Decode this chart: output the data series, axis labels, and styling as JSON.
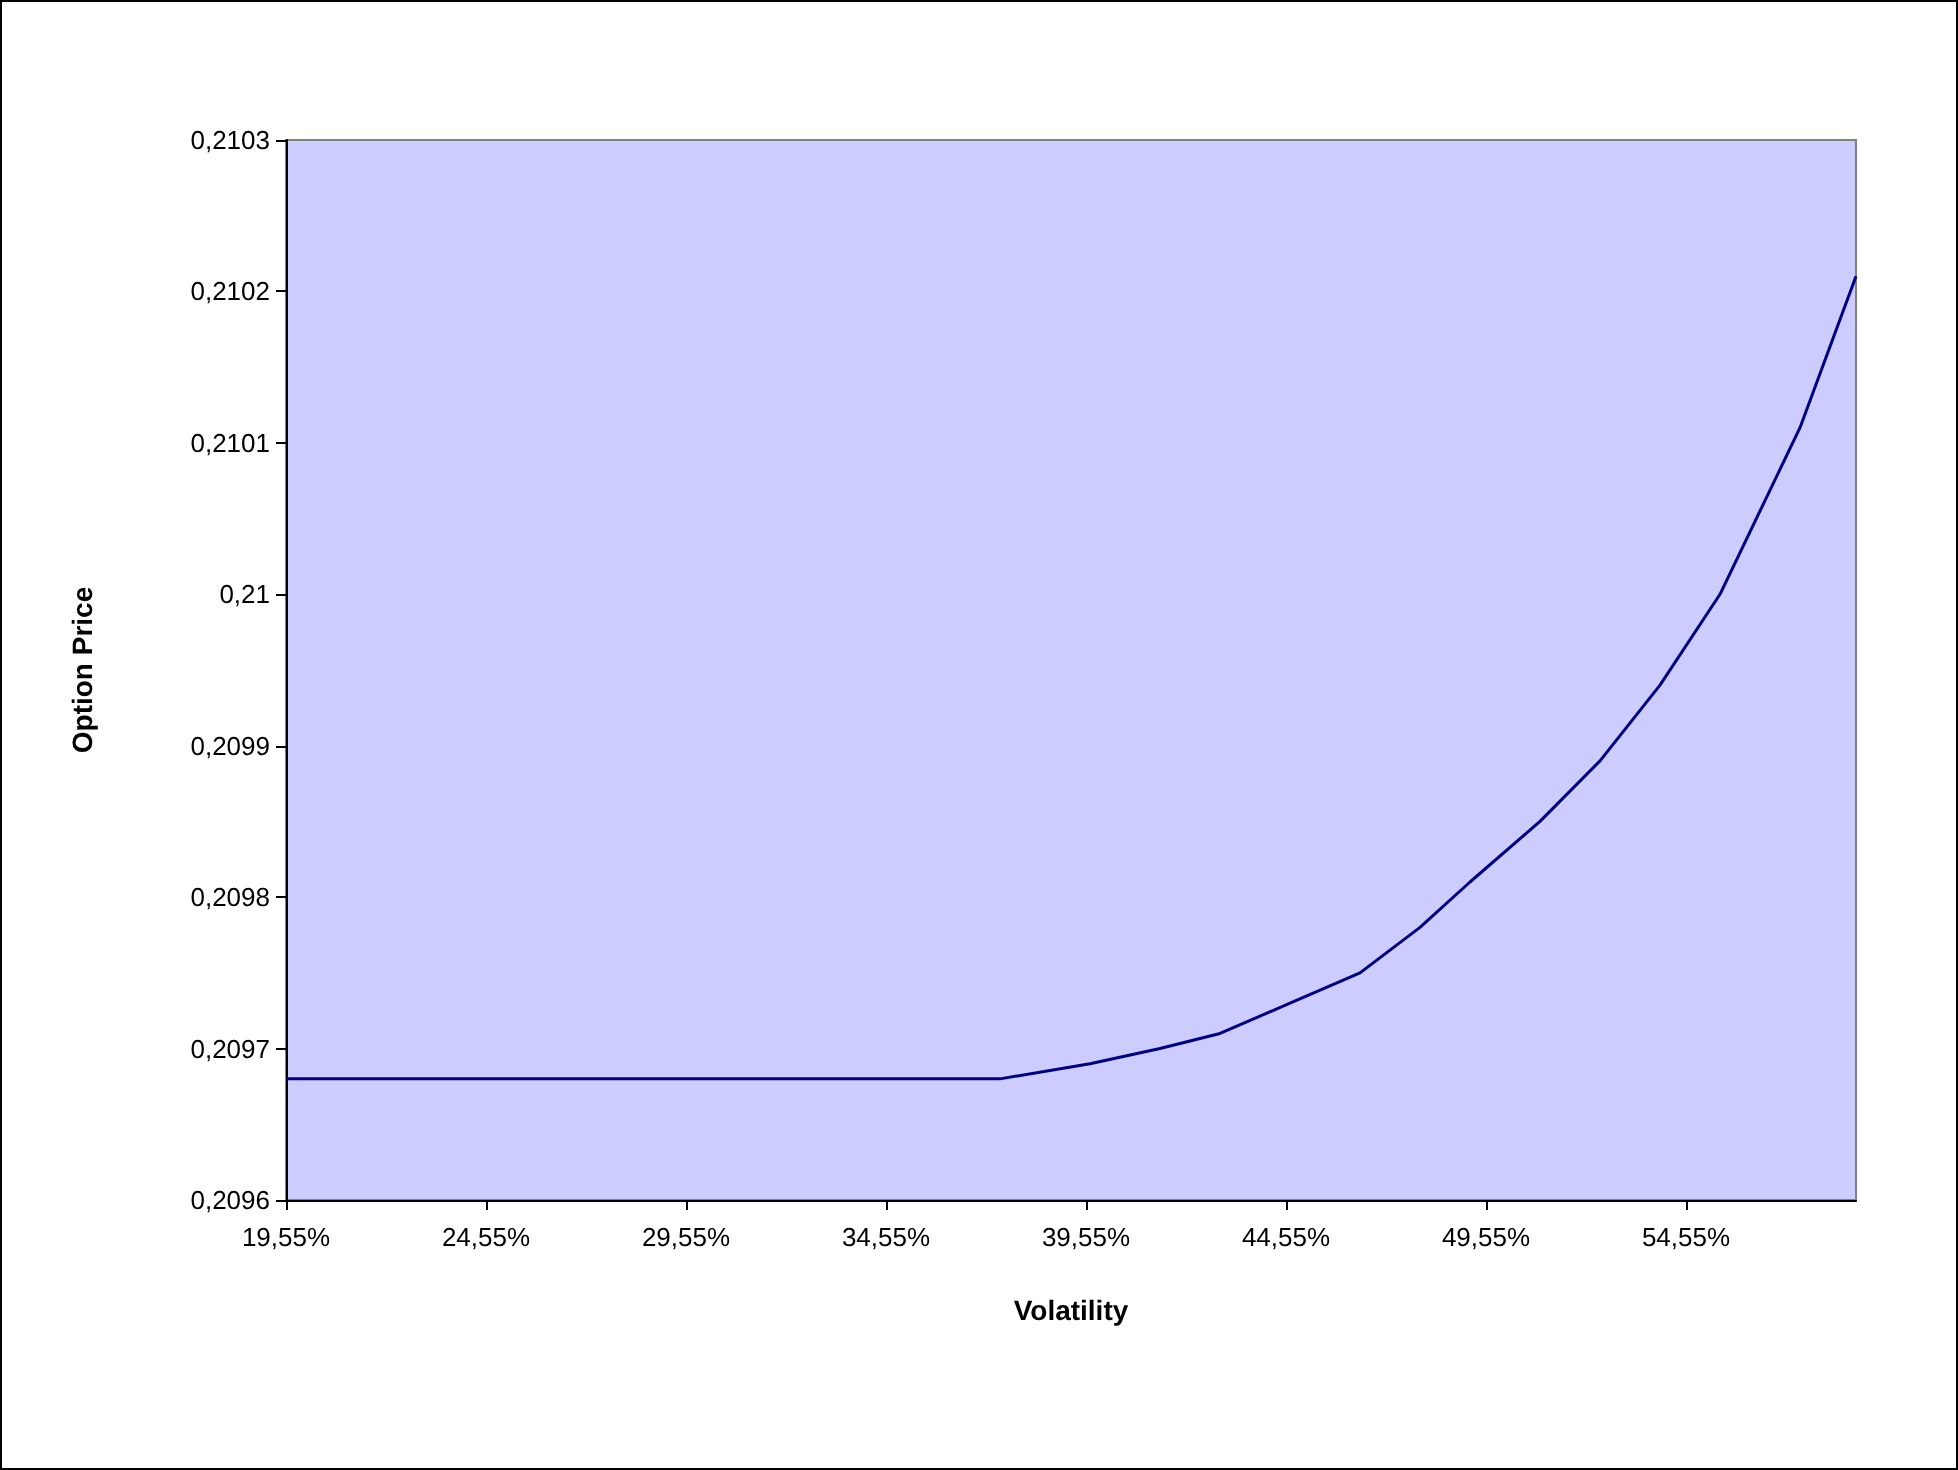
{
  "chart_data": {
    "type": "line",
    "xlabel": "Volatility",
    "ylabel": "Option Price",
    "x": [
      19.55,
      24.55,
      29.55,
      34.55,
      37.4,
      39.65,
      41.4,
      42.9,
      44.65,
      46.4,
      47.9,
      49.15,
      50.9,
      52.4,
      53.9,
      55.4,
      57.4,
      58.8
    ],
    "values": [
      0.20968,
      0.20968,
      0.20968,
      0.20968,
      0.20968,
      0.20969,
      0.2097,
      0.20971,
      0.20973,
      0.20975,
      0.20978,
      0.20981,
      0.20985,
      0.20989,
      0.20994,
      0.21,
      0.21011,
      0.21021
    ],
    "color": "#000080",
    "xlim": [
      19.55,
      58.8
    ],
    "ylim": [
      0.2096,
      0.2103
    ],
    "xticks": [
      {
        "value": 19.55,
        "label": "19,55%"
      },
      {
        "value": 24.55,
        "label": "24,55%"
      },
      {
        "value": 29.55,
        "label": "29,55%"
      },
      {
        "value": 34.55,
        "label": "34,55%"
      },
      {
        "value": 39.55,
        "label": "39,55%"
      },
      {
        "value": 44.55,
        "label": "44,55%"
      },
      {
        "value": 49.55,
        "label": "49,55%"
      },
      {
        "value": 54.55,
        "label": "54,55%"
      }
    ],
    "yticks": [
      {
        "value": 0.2096,
        "label": "0,2096"
      },
      {
        "value": 0.2097,
        "label": "0,2097"
      },
      {
        "value": 0.2098,
        "label": "0,2098"
      },
      {
        "value": 0.2099,
        "label": "0,2099"
      },
      {
        "value": 0.21,
        "label": "0,21"
      },
      {
        "value": 0.2101,
        "label": "0,2101"
      },
      {
        "value": 0.2102,
        "label": "0,2102"
      },
      {
        "value": 0.2103,
        "label": "0,2103"
      }
    ],
    "marker": "none",
    "line_style": "solid",
    "grid": false
  }
}
